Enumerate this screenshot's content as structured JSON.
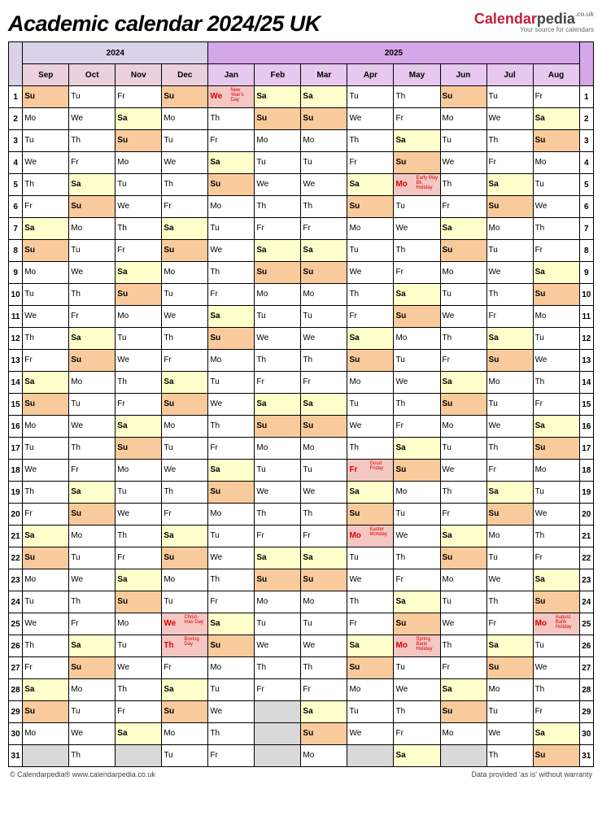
{
  "title": "Academic calendar 2024/25 UK",
  "logo": {
    "a": "Calendar",
    "b": "pedia",
    "uk": ".co.uk",
    "sub": "Your source for calendars"
  },
  "footer": {
    "left": "© Calendarpedia®   www.calendarpedia.co.uk",
    "right": "Data provided 'as is' without warranty"
  },
  "colors": {
    "year2024_bg": "#d9d2e9",
    "year2025_bg": "#d5a6e8",
    "month2024_bg": "#ead1dc",
    "month2025_bg": "#e8c8ef",
    "sat_bg": "#ffffcc",
    "sun_bg": "#f9cb9c",
    "hol_bg": "#f4c7c3",
    "blank_bg": "#d9d9d9",
    "normal_bg": "#ffffff"
  },
  "years": [
    {
      "label": "2024",
      "bg": "#d9d2e9",
      "span": 4
    },
    {
      "label": "2025",
      "bg": "#d5a6e8",
      "span": 8
    }
  ],
  "months": [
    "Sep",
    "Oct",
    "Nov",
    "Dec",
    "Jan",
    "Feb",
    "Mar",
    "Apr",
    "May",
    "Jun",
    "Jul",
    "Aug"
  ],
  "month_bg": [
    "#ead1dc",
    "#ead1dc",
    "#ead1dc",
    "#ead1dc",
    "#e8c8ef",
    "#e8c8ef",
    "#e8c8ef",
    "#e8c8ef",
    "#e8c8ef",
    "#e8c8ef",
    "#e8c8ef",
    "#e8c8ef"
  ],
  "start_dow": [
    0,
    2,
    5,
    0,
    3,
    6,
    6,
    2,
    4,
    0,
    2,
    5
  ],
  "days_in_month": [
    30,
    31,
    30,
    31,
    31,
    28,
    31,
    30,
    31,
    30,
    31,
    31
  ],
  "dow_labels": [
    "Su",
    "Mo",
    "Tu",
    "We",
    "Th",
    "Fr",
    "Sa"
  ],
  "holidays": [
    {
      "m": 4,
      "d": 1,
      "t": "New Year's Day"
    },
    {
      "m": 3,
      "d": 25,
      "t": "Christ-mas Day"
    },
    {
      "m": 3,
      "d": 26,
      "t": "Boxing Day"
    },
    {
      "m": 7,
      "d": 18,
      "t": "Good Friday"
    },
    {
      "m": 7,
      "d": 21,
      "t": "Easter Monday"
    },
    {
      "m": 8,
      "d": 5,
      "t": "Early May Bk. Holiday"
    },
    {
      "m": 8,
      "d": 26,
      "t": "Spring Bank Holiday"
    },
    {
      "m": 11,
      "d": 25,
      "t": "August Bank Holiday"
    }
  ]
}
